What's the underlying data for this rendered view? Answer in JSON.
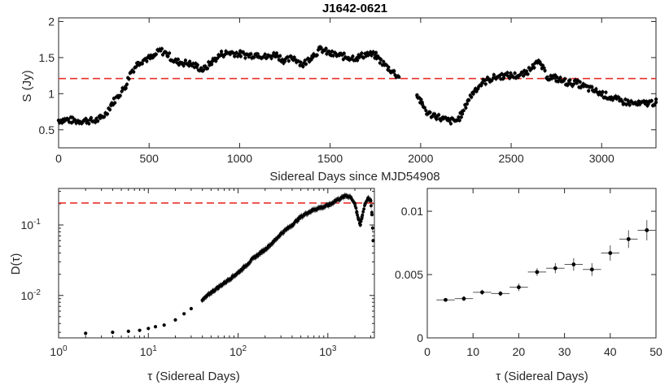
{
  "title": "J1642-0621",
  "chart_data": [
    {
      "type": "scatter",
      "name": "flux-timeseries",
      "xlabel": "Sidereal Days since MJD54908",
      "ylabel": "S (Jy)",
      "xlim": [
        0,
        3300
      ],
      "ylim": [
        0.25,
        2.05
      ],
      "xticks": [
        0,
        500,
        1000,
        1500,
        2000,
        2500,
        3000
      ],
      "yticks": [
        0.5,
        1,
        1.5,
        2
      ],
      "ytick_labels": [
        "0.5",
        "1",
        "1.5",
        "2"
      ],
      "reference_line": {
        "y": 1.21,
        "style": "dashed",
        "color": "#e8312a"
      },
      "segments": [
        {
          "x": [
            0,
            50,
            100,
            150,
            200,
            230,
            260,
            290,
            330,
            370,
            400,
            440,
            480,
            520,
            560,
            600,
            640,
            680,
            720,
            760,
            800,
            850,
            900,
            950,
            1000,
            1050,
            1100,
            1150,
            1200,
            1250,
            1300,
            1350,
            1400,
            1450,
            1500,
            1550,
            1600,
            1650,
            1700,
            1750,
            1800,
            1850,
            1880
          ],
          "y": [
            0.63,
            0.64,
            0.62,
            0.63,
            0.62,
            0.66,
            0.72,
            0.85,
            0.97,
            1.1,
            1.3,
            1.43,
            1.48,
            1.5,
            1.6,
            1.55,
            1.45,
            1.43,
            1.42,
            1.38,
            1.33,
            1.45,
            1.55,
            1.57,
            1.55,
            1.53,
            1.55,
            1.5,
            1.55,
            1.45,
            1.5,
            1.4,
            1.52,
            1.62,
            1.55,
            1.53,
            1.5,
            1.5,
            1.55,
            1.53,
            1.4,
            1.3,
            1.23
          ]
        },
        {
          "x": [
            1980,
            2010,
            2040,
            2080,
            2120,
            2160,
            2200,
            2230,
            2260,
            2300,
            2340,
            2380,
            2420,
            2460,
            2500,
            2540,
            2580,
            2620,
            2660,
            2700,
            2740,
            2780,
            2820,
            2860,
            2900,
            2950,
            3000,
            3050,
            3100,
            3150,
            3200,
            3250,
            3300
          ],
          "y": [
            0.98,
            0.85,
            0.72,
            0.7,
            0.65,
            0.62,
            0.63,
            0.72,
            0.9,
            1.05,
            1.15,
            1.2,
            1.23,
            1.25,
            1.25,
            1.25,
            1.28,
            1.4,
            1.42,
            1.23,
            1.22,
            1.18,
            1.15,
            1.15,
            1.1,
            1.05,
            1.0,
            0.95,
            0.9,
            0.88,
            0.85,
            0.87,
            0.88
          ]
        }
      ]
    },
    {
      "type": "scatter",
      "name": "structure-function",
      "xlabel": "τ (Sidereal Days)",
      "ylabel": "D(τ)",
      "xscale": "log",
      "yscale": "log",
      "xlim": [
        1,
        3300
      ],
      "ylim": [
        0.0025,
        0.33
      ],
      "xticks": [
        1,
        10,
        100,
        1000
      ],
      "yticks": [
        0.01,
        0.1
      ],
      "reference_line": {
        "y": 0.205,
        "style": "dashed",
        "color": "#e8312a"
      },
      "x": [
        2,
        4,
        6,
        8,
        10,
        12,
        15,
        20,
        25,
        30,
        40,
        50,
        60,
        80,
        100,
        120,
        150,
        200,
        250,
        300,
        400,
        500,
        600,
        700,
        800,
        900,
        1000,
        1100,
        1200,
        1400,
        1600,
        1800,
        2000,
        2100,
        2200,
        2300,
        2400,
        2600,
        2800,
        3000,
        3100,
        3200
      ],
      "y": [
        0.0029,
        0.003,
        0.0031,
        0.0032,
        0.0034,
        0.0036,
        0.0038,
        0.0045,
        0.0055,
        0.0065,
        0.0085,
        0.011,
        0.013,
        0.017,
        0.021,
        0.026,
        0.034,
        0.045,
        0.058,
        0.075,
        0.1,
        0.13,
        0.15,
        0.165,
        0.175,
        0.18,
        0.19,
        0.2,
        0.22,
        0.24,
        0.26,
        0.25,
        0.2,
        0.15,
        0.12,
        0.1,
        0.13,
        0.2,
        0.24,
        0.22,
        0.14,
        0.06
      ]
    },
    {
      "type": "scatter",
      "name": "structure-function-zoom",
      "xlabel": "τ (Sidereal Days)",
      "ylabel": "",
      "xlim": [
        0,
        50
      ],
      "ylim": [
        0,
        0.0118
      ],
      "xticks": [
        0,
        10,
        20,
        30,
        40,
        50
      ],
      "yticks": [
        0,
        0.005,
        0.01
      ],
      "ytick_labels": [
        "0",
        "0.005",
        "0.01"
      ],
      "x": [
        4,
        8,
        12,
        16,
        20,
        24,
        28,
        32,
        36,
        40,
        44,
        48
      ],
      "y": [
        0.003,
        0.0031,
        0.0036,
        0.0035,
        0.004,
        0.0052,
        0.0055,
        0.0058,
        0.0054,
        0.0067,
        0.0078,
        0.0085
      ],
      "xerr": [
        2,
        2,
        2,
        2,
        2,
        2,
        2,
        2,
        2,
        2,
        2,
        2
      ],
      "yerr": [
        0.0001,
        0.0002,
        0.0002,
        0.0002,
        0.0003,
        0.0003,
        0.0004,
        0.0005,
        0.0005,
        0.0006,
        0.0007,
        0.0008
      ]
    }
  ],
  "colors": {
    "marker": "#000000",
    "refline": "#e8312a",
    "axis": "#262626"
  }
}
